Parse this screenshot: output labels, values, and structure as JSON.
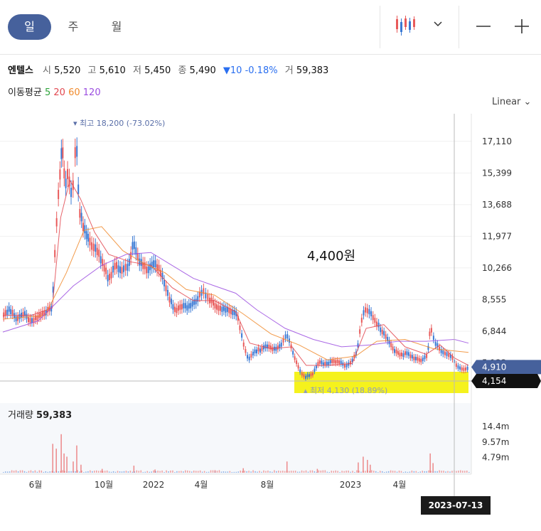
{
  "tabs": {
    "day": "일",
    "week": "주",
    "month": "월"
  },
  "stock": {
    "name": "엔텔스",
    "open_label": "시",
    "open": "5,520",
    "high_label": "고",
    "high": "5,610",
    "low_label": "저",
    "low": "5,450",
    "close_label": "종",
    "close": "5,490",
    "change": "▼10 -0.18%",
    "volume_label": "거",
    "volume": "59,383"
  },
  "ma_legend": {
    "label": "이동평균",
    "p5": "5",
    "p20": "20",
    "p60": "60",
    "p120": "120"
  },
  "scale_label": "Linear",
  "annotation_text": "4,400원",
  "volume_panel": {
    "title": "거래량",
    "value": "59,383"
  },
  "crosshair_date": "2023-07-13",
  "colors": {
    "up": "#e85a5a",
    "down": "#3a79d4",
    "ma5": "#2fa43c",
    "ma20": "#e2474f",
    "ma60": "#f08a2c",
    "ma120": "#9b4de0",
    "accent": "#46619c",
    "highlight": "#f5f21d"
  },
  "chart_data": {
    "type": "candlestick",
    "ylim": [
      4000,
      18600
    ],
    "y_ticks": [
      "17,110",
      "15,399",
      "13,688",
      "11,977",
      "10,266",
      "8,555",
      "6,844",
      "5,133"
    ],
    "x_ticks": [
      "6월",
      "10월",
      "2022",
      "4월",
      "8월",
      "2023",
      "4월"
    ],
    "last_price_label": "4,910",
    "crosshair_price_label": "4,154",
    "max_marker": "최고 18,200 (-73.02%)",
    "min_marker": "최저 4,130 (18.89%)",
    "volume_ticks": [
      "14.4m",
      "9.57m",
      "4.79m"
    ],
    "price_series": [
      {
        "x": 0,
        "y": 7800
      },
      {
        "x": 10,
        "y": 8100
      },
      {
        "x": 20,
        "y": 7500
      },
      {
        "x": 30,
        "y": 7900
      },
      {
        "x": 40,
        "y": 7400
      },
      {
        "x": 50,
        "y": 7700
      },
      {
        "x": 60,
        "y": 7900
      },
      {
        "x": 70,
        "y": 8200
      },
      {
        "x": 75,
        "y": 12000
      },
      {
        "x": 80,
        "y": 15000
      },
      {
        "x": 84,
        "y": 17300
      },
      {
        "x": 88,
        "y": 14800
      },
      {
        "x": 93,
        "y": 15600
      },
      {
        "x": 98,
        "y": 14000
      },
      {
        "x": 104,
        "y": 17600
      },
      {
        "x": 108,
        "y": 13600
      },
      {
        "x": 115,
        "y": 12500
      },
      {
        "x": 122,
        "y": 11800
      },
      {
        "x": 130,
        "y": 11500
      },
      {
        "x": 140,
        "y": 10800
      },
      {
        "x": 150,
        "y": 9700
      },
      {
        "x": 160,
        "y": 10500
      },
      {
        "x": 170,
        "y": 10200
      },
      {
        "x": 178,
        "y": 10500
      },
      {
        "x": 185,
        "y": 11700
      },
      {
        "x": 195,
        "y": 10600
      },
      {
        "x": 205,
        "y": 10300
      },
      {
        "x": 215,
        "y": 10700
      },
      {
        "x": 225,
        "y": 10000
      },
      {
        "x": 235,
        "y": 8800
      },
      {
        "x": 245,
        "y": 8000
      },
      {
        "x": 255,
        "y": 8300
      },
      {
        "x": 265,
        "y": 8200
      },
      {
        "x": 275,
        "y": 8600
      },
      {
        "x": 283,
        "y": 9100
      },
      {
        "x": 292,
        "y": 8700
      },
      {
        "x": 302,
        "y": 8300
      },
      {
        "x": 312,
        "y": 8100
      },
      {
        "x": 322,
        "y": 8000
      },
      {
        "x": 332,
        "y": 7800
      },
      {
        "x": 340,
        "y": 6400
      },
      {
        "x": 348,
        "y": 5300
      },
      {
        "x": 356,
        "y": 5800
      },
      {
        "x": 366,
        "y": 5900
      },
      {
        "x": 376,
        "y": 6100
      },
      {
        "x": 386,
        "y": 5900
      },
      {
        "x": 396,
        "y": 6200
      },
      {
        "x": 402,
        "y": 6800
      },
      {
        "x": 410,
        "y": 5900
      },
      {
        "x": 420,
        "y": 4800
      },
      {
        "x": 428,
        "y": 4400
      },
      {
        "x": 438,
        "y": 4500
      },
      {
        "x": 448,
        "y": 5200
      },
      {
        "x": 458,
        "y": 5100
      },
      {
        "x": 468,
        "y": 5300
      },
      {
        "x": 478,
        "y": 5200
      },
      {
        "x": 486,
        "y": 5000
      },
      {
        "x": 494,
        "y": 5200
      },
      {
        "x": 502,
        "y": 5800
      },
      {
        "x": 510,
        "y": 7900
      },
      {
        "x": 518,
        "y": 8100
      },
      {
        "x": 526,
        "y": 7600
      },
      {
        "x": 534,
        "y": 7100
      },
      {
        "x": 544,
        "y": 6600
      },
      {
        "x": 554,
        "y": 5900
      },
      {
        "x": 564,
        "y": 5600
      },
      {
        "x": 574,
        "y": 5700
      },
      {
        "x": 584,
        "y": 5400
      },
      {
        "x": 594,
        "y": 5300
      },
      {
        "x": 602,
        "y": 5600
      },
      {
        "x": 606,
        "y": 7100
      },
      {
        "x": 612,
        "y": 6300
      },
      {
        "x": 620,
        "y": 5900
      },
      {
        "x": 628,
        "y": 5700
      },
      {
        "x": 636,
        "y": 5500
      },
      {
        "x": 644,
        "y": 5000
      },
      {
        "x": 652,
        "y": 4800
      },
      {
        "x": 660,
        "y": 4910
      }
    ],
    "ma20": [
      {
        "x": 0,
        "y": 7700
      },
      {
        "x": 40,
        "y": 7700
      },
      {
        "x": 70,
        "y": 8100
      },
      {
        "x": 82,
        "y": 13000
      },
      {
        "x": 95,
        "y": 15000
      },
      {
        "x": 110,
        "y": 14000
      },
      {
        "x": 130,
        "y": 12200
      },
      {
        "x": 150,
        "y": 11000
      },
      {
        "x": 180,
        "y": 10600
      },
      {
        "x": 210,
        "y": 10400
      },
      {
        "x": 240,
        "y": 9200
      },
      {
        "x": 270,
        "y": 8500
      },
      {
        "x": 300,
        "y": 8500
      },
      {
        "x": 330,
        "y": 7900
      },
      {
        "x": 350,
        "y": 6200
      },
      {
        "x": 380,
        "y": 5900
      },
      {
        "x": 410,
        "y": 6000
      },
      {
        "x": 430,
        "y": 5000
      },
      {
        "x": 460,
        "y": 5000
      },
      {
        "x": 495,
        "y": 5100
      },
      {
        "x": 515,
        "y": 7000
      },
      {
        "x": 540,
        "y": 7200
      },
      {
        "x": 570,
        "y": 6000
      },
      {
        "x": 600,
        "y": 5600
      },
      {
        "x": 620,
        "y": 6100
      },
      {
        "x": 640,
        "y": 5400
      },
      {
        "x": 660,
        "y": 5000
      }
    ],
    "ma60": [
      {
        "x": 0,
        "y": 7500
      },
      {
        "x": 60,
        "y": 7700
      },
      {
        "x": 90,
        "y": 10000
      },
      {
        "x": 115,
        "y": 12300
      },
      {
        "x": 140,
        "y": 12500
      },
      {
        "x": 170,
        "y": 11200
      },
      {
        "x": 200,
        "y": 10500
      },
      {
        "x": 230,
        "y": 10000
      },
      {
        "x": 260,
        "y": 9100
      },
      {
        "x": 300,
        "y": 8800
      },
      {
        "x": 340,
        "y": 7800
      },
      {
        "x": 380,
        "y": 6700
      },
      {
        "x": 420,
        "y": 6100
      },
      {
        "x": 460,
        "y": 5300
      },
      {
        "x": 500,
        "y": 5500
      },
      {
        "x": 530,
        "y": 6300
      },
      {
        "x": 570,
        "y": 6400
      },
      {
        "x": 610,
        "y": 5900
      },
      {
        "x": 660,
        "y": 5700
      }
    ],
    "ma120": [
      {
        "x": 0,
        "y": 6800
      },
      {
        "x": 50,
        "y": 7400
      },
      {
        "x": 100,
        "y": 9300
      },
      {
        "x": 140,
        "y": 10400
      },
      {
        "x": 175,
        "y": 11000
      },
      {
        "x": 210,
        "y": 11100
      },
      {
        "x": 240,
        "y": 10400
      },
      {
        "x": 270,
        "y": 9700
      },
      {
        "x": 300,
        "y": 9300
      },
      {
        "x": 330,
        "y": 8900
      },
      {
        "x": 360,
        "y": 8000
      },
      {
        "x": 400,
        "y": 7000
      },
      {
        "x": 440,
        "y": 6400
      },
      {
        "x": 480,
        "y": 6000
      },
      {
        "x": 520,
        "y": 6100
      },
      {
        "x": 560,
        "y": 6300
      },
      {
        "x": 600,
        "y": 6300
      },
      {
        "x": 640,
        "y": 6400
      },
      {
        "x": 660,
        "y": 6200
      }
    ],
    "volume_series": [
      {
        "x": 70,
        "y": 9.0
      },
      {
        "x": 75,
        "y": 7.5
      },
      {
        "x": 82,
        "y": 12.0
      },
      {
        "x": 86,
        "y": 6.0
      },
      {
        "x": 90,
        "y": 5.0
      },
      {
        "x": 99,
        "y": 3.5
      },
      {
        "x": 104,
        "y": 8.5
      },
      {
        "x": 110,
        "y": 2.5
      },
      {
        "x": 140,
        "y": 1.2
      },
      {
        "x": 185,
        "y": 2.2
      },
      {
        "x": 215,
        "y": 1.0
      },
      {
        "x": 300,
        "y": 0.8
      },
      {
        "x": 340,
        "y": 1.4
      },
      {
        "x": 402,
        "y": 3.5
      },
      {
        "x": 445,
        "y": 1.2
      },
      {
        "x": 503,
        "y": 3.2
      },
      {
        "x": 510,
        "y": 5.0
      },
      {
        "x": 516,
        "y": 4.0
      },
      {
        "x": 520,
        "y": 2.5
      },
      {
        "x": 605,
        "y": 6.0
      },
      {
        "x": 609,
        "y": 3.0
      }
    ]
  }
}
